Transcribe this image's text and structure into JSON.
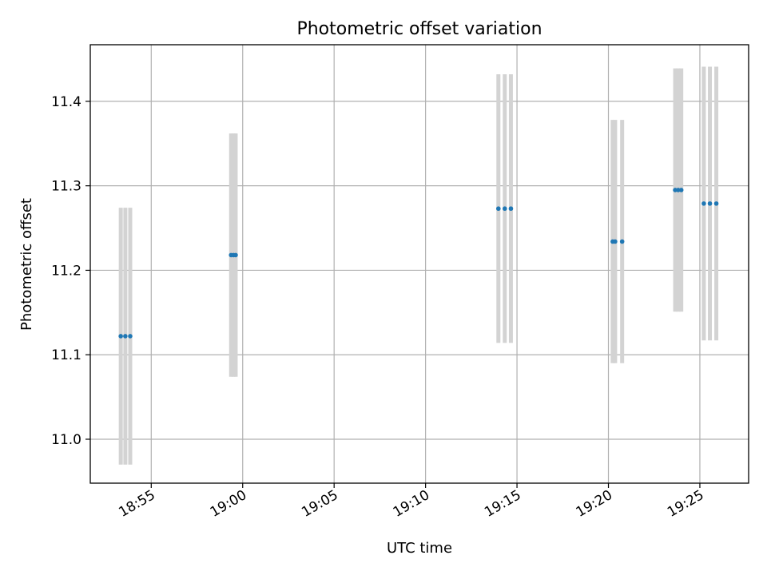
{
  "chart_data": {
    "type": "scatter",
    "title": "Photometric offset variation",
    "xlabel": "UTC time",
    "ylabel": "Photometric offset",
    "xlim": [
      "18:51:40",
      "19:27:40"
    ],
    "ylim": [
      10.948,
      11.467
    ],
    "grid": true,
    "x_ticks": [
      "18:55",
      "19:00",
      "19:05",
      "19:10",
      "19:15",
      "19:20",
      "19:25"
    ],
    "y_ticks": [
      "11.0",
      "11.1",
      "11.2",
      "11.3",
      "11.4"
    ],
    "point_color": "#1f77b4",
    "errorbar_color": "#d3d3d3",
    "points": [
      {
        "t": "18:53:20",
        "y": 11.122,
        "err": 0.152
      },
      {
        "t": "18:53:35",
        "y": 11.122,
        "err": 0.152
      },
      {
        "t": "18:53:51",
        "y": 11.122,
        "err": 0.152
      },
      {
        "t": "18:59:22",
        "y": 11.218,
        "err": 0.144
      },
      {
        "t": "18:59:30",
        "y": 11.218,
        "err": 0.144
      },
      {
        "t": "18:59:37",
        "y": 11.218,
        "err": 0.144
      },
      {
        "t": "19:13:59",
        "y": 11.273,
        "err": 0.159
      },
      {
        "t": "19:14:20",
        "y": 11.273,
        "err": 0.159
      },
      {
        "t": "19:14:40",
        "y": 11.273,
        "err": 0.159
      },
      {
        "t": "19:20:14",
        "y": 11.234,
        "err": 0.144
      },
      {
        "t": "19:20:22",
        "y": 11.234,
        "err": 0.144
      },
      {
        "t": "19:20:45",
        "y": 11.234,
        "err": 0.144
      },
      {
        "t": "19:23:39",
        "y": 11.295,
        "err": 0.144
      },
      {
        "t": "19:23:49",
        "y": 11.295,
        "err": 0.144
      },
      {
        "t": "19:23:59",
        "y": 11.295,
        "err": 0.144
      },
      {
        "t": "19:25:13",
        "y": 11.279,
        "err": 0.162
      },
      {
        "t": "19:25:33",
        "y": 11.279,
        "err": 0.162
      },
      {
        "t": "19:25:54",
        "y": 11.279,
        "err": 0.162
      }
    ]
  }
}
